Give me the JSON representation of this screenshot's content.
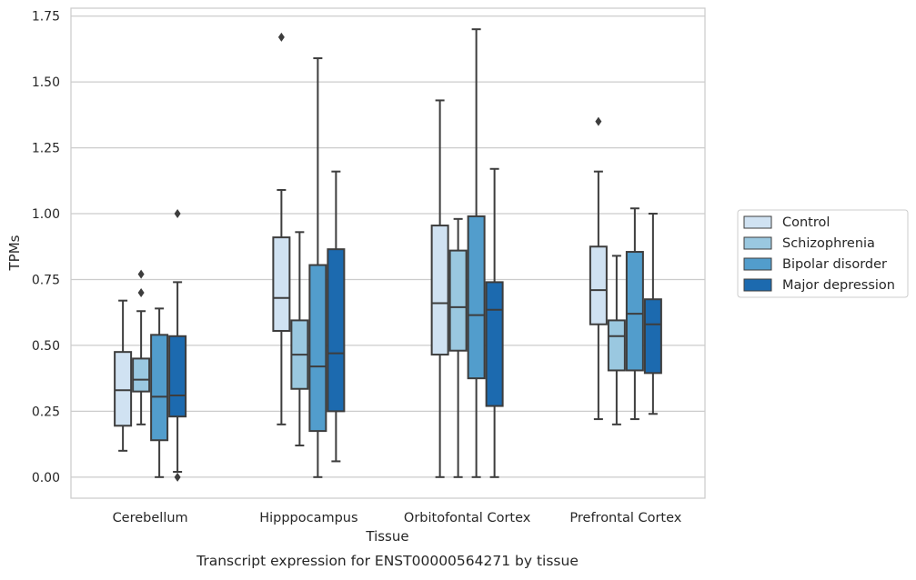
{
  "chart_data": {
    "type": "box",
    "title": "Transcript expression for ENST00000564271 by tissue",
    "xlabel": "Tissue",
    "ylabel": "TPMs",
    "ylim": [
      -0.08,
      1.78
    ],
    "yticks": [
      "0.00",
      "0.25",
      "0.50",
      "0.75",
      "1.00",
      "1.25",
      "1.50",
      "1.75"
    ],
    "ytick_values": [
      0,
      0.25,
      0.5,
      0.75,
      1.0,
      1.25,
      1.5,
      1.75
    ],
    "grid": "horizontal",
    "legend_position": "right",
    "categories": [
      "Cerebellum",
      "Hipppocampus",
      "Orbitofontal Cortex",
      "Prefrontal Cortex"
    ],
    "series": [
      {
        "name": "Control",
        "color": "#d0e2f2",
        "boxes": [
          {
            "whislo": 0.1,
            "q1": 0.195,
            "med": 0.33,
            "q3": 0.475,
            "whishi": 0.67,
            "fliers": []
          },
          {
            "whislo": 0.2,
            "q1": 0.555,
            "med": 0.68,
            "q3": 0.91,
            "whishi": 1.09,
            "fliers": [
              1.67
            ]
          },
          {
            "whislo": 0.0,
            "q1": 0.465,
            "med": 0.66,
            "q3": 0.955,
            "whishi": 1.43,
            "fliers": []
          },
          {
            "whislo": 0.22,
            "q1": 0.58,
            "med": 0.71,
            "q3": 0.875,
            "whishi": 1.16,
            "fliers": [
              1.35
            ]
          }
        ]
      },
      {
        "name": "Schizophrenia",
        "color": "#9ac8e0",
        "boxes": [
          {
            "whislo": 0.2,
            "q1": 0.325,
            "med": 0.37,
            "q3": 0.45,
            "whishi": 0.63,
            "fliers": [
              0.7,
              0.77
            ]
          },
          {
            "whislo": 0.12,
            "q1": 0.335,
            "med": 0.465,
            "q3": 0.595,
            "whishi": 0.93,
            "fliers": []
          },
          {
            "whislo": 0.0,
            "q1": 0.48,
            "med": 0.645,
            "q3": 0.86,
            "whishi": 0.98,
            "fliers": []
          },
          {
            "whislo": 0.2,
            "q1": 0.405,
            "med": 0.535,
            "q3": 0.595,
            "whishi": 0.84,
            "fliers": []
          }
        ]
      },
      {
        "name": "Bipolar disorder",
        "color": "#529dcc",
        "boxes": [
          {
            "whislo": 0.0,
            "q1": 0.14,
            "med": 0.305,
            "q3": 0.54,
            "whishi": 0.64,
            "fliers": []
          },
          {
            "whislo": 0.0,
            "q1": 0.175,
            "med": 0.42,
            "q3": 0.805,
            "whishi": 1.59,
            "fliers": []
          },
          {
            "whislo": 0.0,
            "q1": 0.375,
            "med": 0.615,
            "q3": 0.99,
            "whishi": 1.7,
            "fliers": []
          },
          {
            "whislo": 0.22,
            "q1": 0.405,
            "med": 0.62,
            "q3": 0.855,
            "whishi": 1.02,
            "fliers": []
          }
        ]
      },
      {
        "name": "Major depression",
        "color": "#1c6aaf",
        "boxes": [
          {
            "whislo": 0.02,
            "q1": 0.23,
            "med": 0.31,
            "q3": 0.535,
            "whishi": 0.74,
            "fliers": [
              0.0,
              1.0
            ]
          },
          {
            "whislo": 0.06,
            "q1": 0.25,
            "med": 0.47,
            "q3": 0.865,
            "whishi": 1.16,
            "fliers": []
          },
          {
            "whislo": 0.0,
            "q1": 0.27,
            "med": 0.635,
            "q3": 0.74,
            "whishi": 1.17,
            "fliers": []
          },
          {
            "whislo": 0.24,
            "q1": 0.395,
            "med": 0.58,
            "q3": 0.675,
            "whishi": 1.0,
            "fliers": []
          }
        ]
      }
    ]
  }
}
